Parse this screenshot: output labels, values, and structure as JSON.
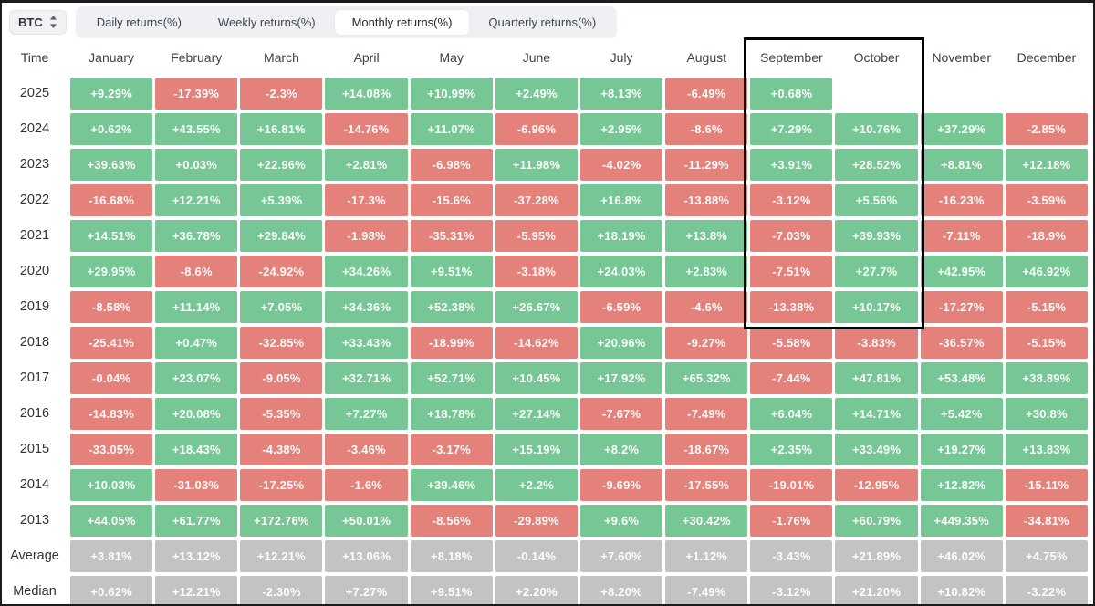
{
  "toolbar": {
    "coin": "BTC",
    "tabs": [
      {
        "label": "Daily returns(%)",
        "active": false
      },
      {
        "label": "Weekly returns(%)",
        "active": false
      },
      {
        "label": "Monthly returns(%)",
        "active": true
      },
      {
        "label": "Quarterly returns(%)",
        "active": false
      }
    ]
  },
  "palette": {
    "green": "#76c795",
    "red": "#e3817a",
    "gray": "#c3c3c4",
    "highlight_border": "#000000"
  },
  "highlight": {
    "columns": [
      "September",
      "October"
    ],
    "from_row": "header",
    "to_row": "2019"
  },
  "table": {
    "columns": [
      "Time",
      "January",
      "February",
      "March",
      "April",
      "May",
      "June",
      "July",
      "August",
      "September",
      "October",
      "November",
      "December"
    ],
    "rows": [
      {
        "label": "2025",
        "type": "year",
        "cells": [
          "+9.29%",
          "-17.39%",
          "-2.3%",
          "+14.08%",
          "+10.99%",
          "+2.49%",
          "+8.13%",
          "-6.49%",
          "+0.68%",
          "",
          "",
          ""
        ]
      },
      {
        "label": "2024",
        "type": "year",
        "cells": [
          "+0.62%",
          "+43.55%",
          "+16.81%",
          "-14.76%",
          "+11.07%",
          "-6.96%",
          "+2.95%",
          "-8.6%",
          "+7.29%",
          "+10.76%",
          "+37.29%",
          "-2.85%"
        ]
      },
      {
        "label": "2023",
        "type": "year",
        "cells": [
          "+39.63%",
          "+0.03%",
          "+22.96%",
          "+2.81%",
          "-6.98%",
          "+11.98%",
          "-4.02%",
          "-11.29%",
          "+3.91%",
          "+28.52%",
          "+8.81%",
          "+12.18%"
        ]
      },
      {
        "label": "2022",
        "type": "year",
        "cells": [
          "-16.68%",
          "+12.21%",
          "+5.39%",
          "-17.3%",
          "-15.6%",
          "-37.28%",
          "+16.8%",
          "-13.88%",
          "-3.12%",
          "+5.56%",
          "-16.23%",
          "-3.59%"
        ]
      },
      {
        "label": "2021",
        "type": "year",
        "cells": [
          "+14.51%",
          "+36.78%",
          "+29.84%",
          "-1.98%",
          "-35.31%",
          "-5.95%",
          "+18.19%",
          "+13.8%",
          "-7.03%",
          "+39.93%",
          "-7.11%",
          "-18.9%"
        ]
      },
      {
        "label": "2020",
        "type": "year",
        "cells": [
          "+29.95%",
          "-8.6%",
          "-24.92%",
          "+34.26%",
          "+9.51%",
          "-3.18%",
          "+24.03%",
          "+2.83%",
          "-7.51%",
          "+27.7%",
          "+42.95%",
          "+46.92%"
        ]
      },
      {
        "label": "2019",
        "type": "year",
        "cells": [
          "-8.58%",
          "+11.14%",
          "+7.05%",
          "+34.36%",
          "+52.38%",
          "+26.67%",
          "-6.59%",
          "-4.6%",
          "-13.38%",
          "+10.17%",
          "-17.27%",
          "-5.15%"
        ]
      },
      {
        "label": "2018",
        "type": "year",
        "cells": [
          "-25.41%",
          "+0.47%",
          "-32.85%",
          "+33.43%",
          "-18.99%",
          "-14.62%",
          "+20.96%",
          "-9.27%",
          "-5.58%",
          "-3.83%",
          "-36.57%",
          "-5.15%"
        ]
      },
      {
        "label": "2017",
        "type": "year",
        "cells": [
          "-0.04%",
          "+23.07%",
          "-9.05%",
          "+32.71%",
          "+52.71%",
          "+10.45%",
          "+17.92%",
          "+65.32%",
          "-7.44%",
          "+47.81%",
          "+53.48%",
          "+38.89%"
        ]
      },
      {
        "label": "2016",
        "type": "year",
        "cells": [
          "-14.83%",
          "+20.08%",
          "-5.35%",
          "+7.27%",
          "+18.78%",
          "+27.14%",
          "-7.67%",
          "-7.49%",
          "+6.04%",
          "+14.71%",
          "+5.42%",
          "+30.8%"
        ]
      },
      {
        "label": "2015",
        "type": "year",
        "cells": [
          "-33.05%",
          "+18.43%",
          "-4.38%",
          "-3.46%",
          "-3.17%",
          "+15.19%",
          "+8.2%",
          "-18.67%",
          "+2.35%",
          "+33.49%",
          "+19.27%",
          "+13.83%"
        ]
      },
      {
        "label": "2014",
        "type": "year",
        "cells": [
          "+10.03%",
          "-31.03%",
          "-17.25%",
          "-1.6%",
          "+39.46%",
          "+2.2%",
          "-9.69%",
          "-17.55%",
          "-19.01%",
          "-12.95%",
          "+12.82%",
          "-15.11%"
        ]
      },
      {
        "label": "2013",
        "type": "year",
        "cells": [
          "+44.05%",
          "+61.77%",
          "+172.76%",
          "+50.01%",
          "-8.56%",
          "-29.89%",
          "+9.6%",
          "+30.42%",
          "-1.76%",
          "+60.79%",
          "+449.35%",
          "-34.81%"
        ]
      },
      {
        "label": "Average",
        "type": "summary",
        "cells": [
          "+3.81%",
          "+13.12%",
          "+12.21%",
          "+13.06%",
          "+8.18%",
          "-0.14%",
          "+7.60%",
          "+1.12%",
          "-3.43%",
          "+21.89%",
          "+46.02%",
          "+4.75%"
        ]
      },
      {
        "label": "Median",
        "type": "summary",
        "cells": [
          "+0.62%",
          "+12.21%",
          "-2.30%",
          "+7.27%",
          "+9.51%",
          "+2.20%",
          "+8.20%",
          "-7.49%",
          "-3.12%",
          "+21.20%",
          "+10.82%",
          "-3.22%"
        ]
      }
    ]
  }
}
